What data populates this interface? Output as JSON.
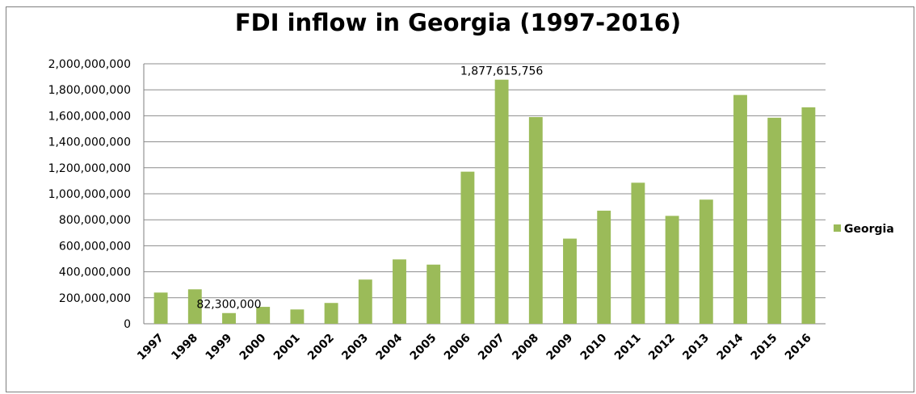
{
  "chart_data": {
    "type": "bar",
    "title": "FDI inflow in Georgia (1997-2016)",
    "xlabel": "",
    "ylabel": "",
    "ylim": [
      0,
      2000000000
    ],
    "ytick_step": 200000000,
    "grid": true,
    "legend_position": "right",
    "color": "#9bbb59",
    "categories": [
      "1997",
      "1998",
      "1999",
      "2000",
      "2001",
      "2002",
      "2003",
      "2004",
      "2005",
      "2006",
      "2007",
      "2008",
      "2009",
      "2010",
      "2011",
      "2012",
      "2013",
      "2014",
      "2015",
      "2016"
    ],
    "series": [
      {
        "name": "Georgia",
        "values": [
          240000000,
          265000000,
          82300000,
          130000000,
          110000000,
          160000000,
          340000000,
          495000000,
          455000000,
          1170000000,
          1877615756,
          1590000000,
          655000000,
          870000000,
          1085000000,
          830000000,
          955000000,
          1760000000,
          1585000000,
          1665000000
        ]
      }
    ],
    "yticks": [
      "0",
      "200,000,000",
      "400,000,000",
      "600,000,000",
      "800,000,000",
      "1,000,000,000",
      "1,200,000,000",
      "1,400,000,000",
      "1,600,000,000",
      "1,800,000,000",
      "2,000,000,000"
    ],
    "data_labels": [
      {
        "category": "1999",
        "text": "82,300,000"
      },
      {
        "category": "2007",
        "text": "1,877,615,756"
      }
    ]
  }
}
